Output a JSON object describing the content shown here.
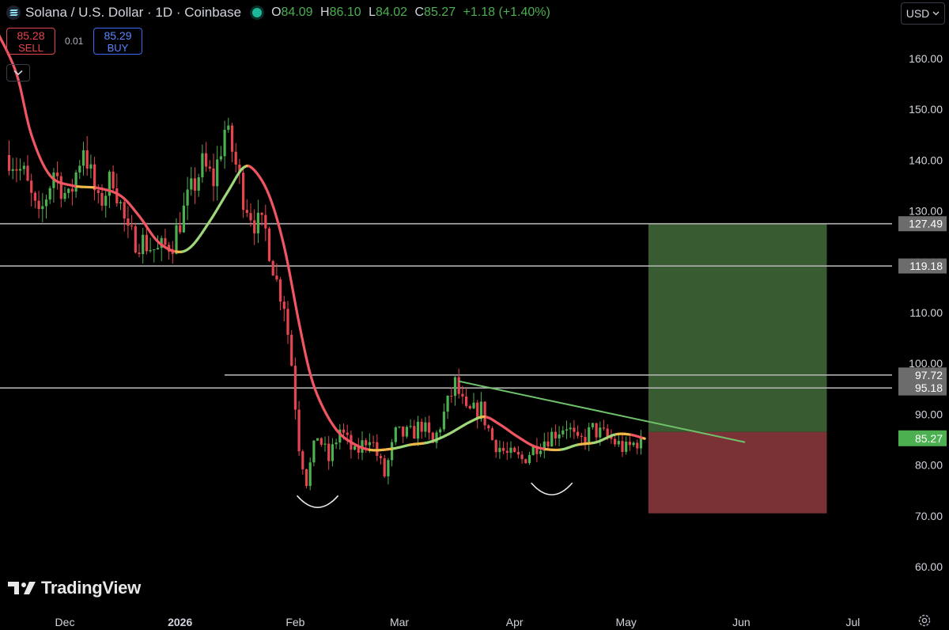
{
  "header": {
    "title": "Solana / U.S. Dollar · 1D · Coinbase",
    "open_label": "O",
    "open": "84.09",
    "high_label": "H",
    "high": "86.10",
    "low_label": "L",
    "low": "84.02",
    "close_label": "C",
    "close": "85.27",
    "change": "+1.18 (+1.40%)"
  },
  "trade": {
    "sell_price": "85.28",
    "sell_label": "SELL",
    "spread": "0.01",
    "buy_price": "85.29",
    "buy_label": "BUY"
  },
  "currency": "USD",
  "logo": "TradingView",
  "icons": [
    "solana-icon",
    "chevron-down-icon",
    "tradingview-logo-icon",
    "settings-gear-icon"
  ],
  "colors": {
    "up": "#4caf50",
    "down": "#e5454f",
    "profit_zone": "#395b31",
    "loss_zone": "#7b3236",
    "level_line": "#b0b0b0",
    "trendline": "#6fc26a",
    "last_price_badge": "#4caf50"
  },
  "chart_data": {
    "type": "candlestick",
    "y_axis": {
      "min": 55,
      "max": 170,
      "ticks": [
        60,
        70,
        80,
        90,
        100,
        110,
        120,
        130,
        140,
        150,
        160
      ],
      "tick_labels": [
        "60.00",
        "70.00",
        "80.00",
        "90.00",
        "100.00",
        "110.00",
        "120.00",
        "130.00",
        "140.00",
        "150.00",
        "160.00"
      ]
    },
    "x_axis": {
      "labels": [
        "Dec",
        "2026",
        "Feb",
        "Mar",
        "Apr",
        "May",
        "Jun",
        "Jul"
      ],
      "label_dates": [
        "2025-12-01",
        "2026-01-01",
        "2026-02-01",
        "2026-03-01",
        "2026-04-01",
        "2026-05-01",
        "2026-06-01",
        "2026-07-01"
      ]
    },
    "price_path": [
      [
        "2025-11-16",
        141
      ],
      [
        "2025-11-20",
        137
      ],
      [
        "2025-11-24",
        128
      ],
      [
        "2025-11-28",
        138
      ],
      [
        "2025-12-02",
        132
      ],
      [
        "2025-12-06",
        143
      ],
      [
        "2025-12-10",
        131
      ],
      [
        "2025-12-14",
        137
      ],
      [
        "2025-12-18",
        125
      ],
      [
        "2025-12-22",
        124
      ],
      [
        "2025-12-26",
        122
      ],
      [
        "2025-12-30",
        124
      ],
      [
        "2026-01-03",
        132
      ],
      [
        "2026-01-07",
        139
      ],
      [
        "2026-01-10",
        136
      ],
      [
        "2026-01-13",
        146
      ],
      [
        "2026-01-15",
        142
      ],
      [
        "2026-01-18",
        133
      ],
      [
        "2026-01-21",
        128
      ],
      [
        "2026-01-24",
        126
      ],
      [
        "2026-01-27",
        116
      ],
      [
        "2026-01-29",
        112
      ],
      [
        "2026-01-31",
        100
      ],
      [
        "2026-02-02",
        84
      ],
      [
        "2026-02-04",
        77
      ],
      [
        "2026-02-07",
        86
      ],
      [
        "2026-02-10",
        81
      ],
      [
        "2026-02-13",
        87
      ],
      [
        "2026-02-17",
        82
      ],
      [
        "2026-02-21",
        86
      ],
      [
        "2026-02-25",
        78
      ],
      [
        "2026-02-28",
        86
      ],
      [
        "2026-03-04",
        86
      ],
      [
        "2026-03-07",
        88
      ],
      [
        "2026-03-10",
        84
      ],
      [
        "2026-03-13",
        90
      ],
      [
        "2026-03-16",
        96
      ],
      [
        "2026-03-19",
        90
      ],
      [
        "2026-03-23",
        91
      ],
      [
        "2026-03-26",
        85
      ],
      [
        "2026-03-30",
        82
      ],
      [
        "2026-04-03",
        81
      ],
      [
        "2026-04-07",
        84
      ],
      [
        "2026-04-11",
        86
      ],
      [
        "2026-04-15",
        88
      ],
      [
        "2026-04-18",
        84
      ],
      [
        "2026-04-22",
        87
      ],
      [
        "2026-04-27",
        85
      ],
      [
        "2026-05-01",
        83
      ],
      [
        "2026-05-05",
        85.27
      ]
    ],
    "moving_average": [
      [
        "2025-11-13",
        165
      ],
      [
        "2025-11-18",
        157
      ],
      [
        "2025-11-22",
        145
      ],
      [
        "2025-11-27",
        137
      ],
      [
        "2025-12-03",
        135
      ],
      [
        "2025-12-10",
        134.5
      ],
      [
        "2025-12-16",
        133
      ],
      [
        "2025-12-21",
        129
      ],
      [
        "2025-12-26",
        124
      ],
      [
        "2025-12-31",
        122
      ],
      [
        "2026-01-04",
        123
      ],
      [
        "2026-01-09",
        128
      ],
      [
        "2026-01-14",
        134
      ],
      [
        "2026-01-18",
        138.5
      ],
      [
        "2026-01-21",
        138
      ],
      [
        "2026-01-25",
        133
      ],
      [
        "2026-01-29",
        123
      ],
      [
        "2026-02-02",
        108
      ],
      [
        "2026-02-05",
        98
      ],
      [
        "2026-02-08",
        92
      ],
      [
        "2026-02-12",
        87
      ],
      [
        "2026-02-16",
        84.5
      ],
      [
        "2026-02-21",
        83
      ],
      [
        "2026-02-27",
        83.2
      ],
      [
        "2026-03-04",
        84
      ],
      [
        "2026-03-09",
        84.5
      ],
      [
        "2026-03-14",
        86
      ],
      [
        "2026-03-20",
        88.5
      ],
      [
        "2026-03-24",
        89.5
      ],
      [
        "2026-03-28",
        88
      ],
      [
        "2026-04-02",
        85.5
      ],
      [
        "2026-04-07",
        83.5
      ],
      [
        "2026-04-13",
        83
      ],
      [
        "2026-04-18",
        84
      ],
      [
        "2026-04-23",
        84.5
      ],
      [
        "2026-04-28",
        86
      ],
      [
        "2026-05-02",
        86
      ],
      [
        "2026-05-06",
        85.2
      ]
    ],
    "horizontal_levels": [
      127.49,
      119.18,
      97.72,
      95.18
    ],
    "level_labels": [
      "127.49",
      "119.18",
      "97.72",
      "95.18"
    ],
    "trendline": [
      [
        "2026-03-17",
        96.5
      ],
      [
        "2026-06-02",
        84.5
      ]
    ],
    "position": {
      "entry": 86.5,
      "target": 127.49,
      "stop": 70.5,
      "start": "2026-05-07",
      "end": "2026-06-24"
    },
    "last_price": "85.27",
    "annotations": [
      {
        "type": "arc",
        "center": [
          "2026-02-07",
          71.5
        ]
      },
      {
        "type": "arc",
        "center": [
          "2026-04-11",
          74
        ]
      }
    ]
  }
}
